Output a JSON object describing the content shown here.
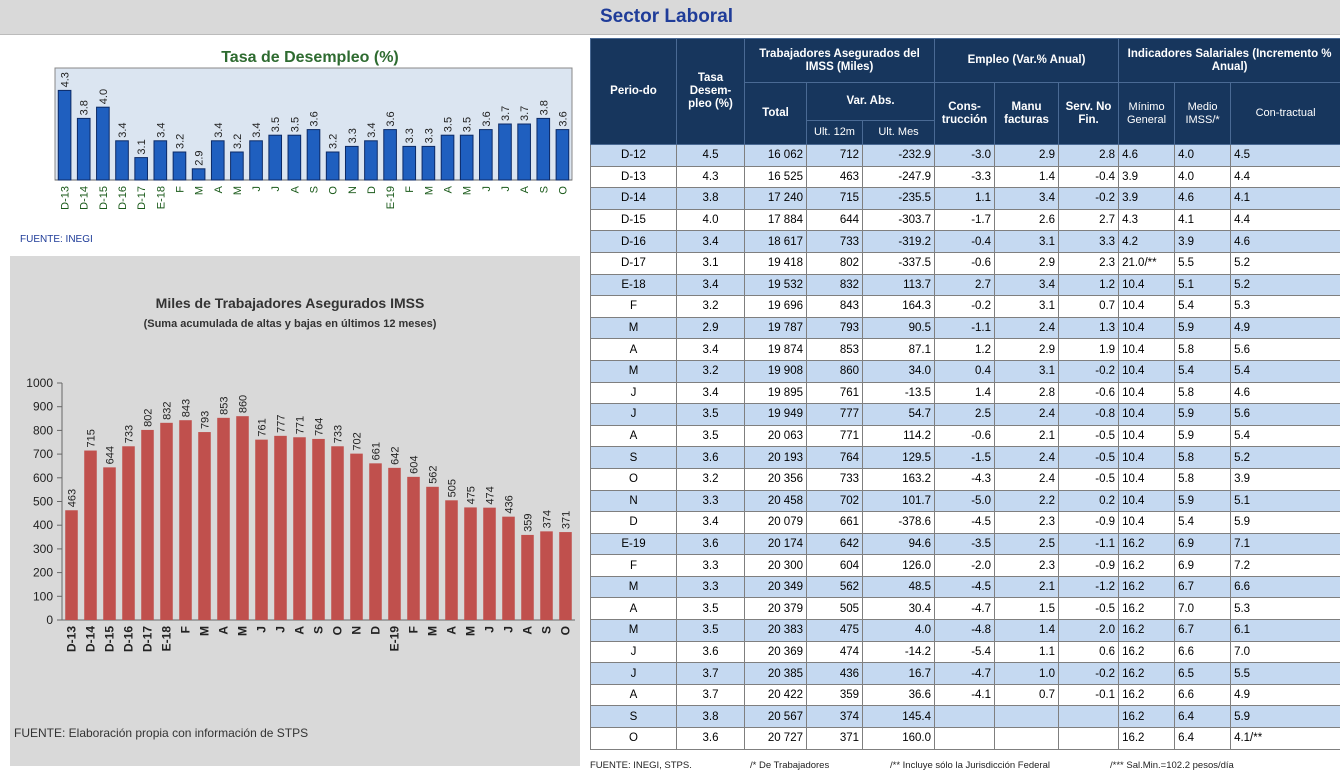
{
  "title": "Sector Laboral",
  "chart_data": [
    {
      "type": "bar",
      "title": "Tasa de Desempleo (%)",
      "source": "FUENTE: INEGI",
      "categories": [
        "D-13",
        "D-14",
        "D-15",
        "D-16",
        "D-17",
        "E-18",
        "F",
        "M",
        "A",
        "M",
        "J",
        "J",
        "A",
        "S",
        "O",
        "N",
        "D",
        "E-19",
        "F",
        "M",
        "A",
        "M",
        "J",
        "J",
        "A",
        "S",
        "O"
      ],
      "values": [
        4.3,
        3.8,
        4.0,
        3.4,
        3.1,
        3.4,
        3.2,
        2.9,
        3.4,
        3.2,
        3.4,
        3.5,
        3.5,
        3.6,
        3.2,
        3.3,
        3.4,
        3.6,
        3.3,
        3.3,
        3.5,
        3.5,
        3.6,
        3.7,
        3.7,
        3.8,
        3.6
      ],
      "value_labels": [
        "4.3",
        "3.8",
        "4.0",
        "3.4",
        "3.1",
        "3.4",
        "3.2",
        "2.9",
        "3.4",
        "3.2",
        "3.4",
        "3.5",
        "3.5",
        "3.6",
        "3.2",
        "3.3",
        "3.4",
        "3.6",
        "3.3",
        "3.3",
        "3.5",
        "3.5",
        "3.6",
        "3.7",
        "3.7",
        "3.8",
        "3.6"
      ],
      "color": "#1f5fbf",
      "ylim": [
        2.7,
        4.7
      ]
    },
    {
      "type": "bar",
      "title": "Miles de Trabajadores Asegurados IMSS",
      "subtitle": "(Suma acumulada de altas y bajas en últimos 12 meses)",
      "source": "FUENTE: Elaboración propia con información de STPS",
      "categories": [
        "D-13",
        "D-14",
        "D-15",
        "D-16",
        "D-17",
        "E-18",
        "F",
        "M",
        "A",
        "M",
        "J",
        "J",
        "A",
        "S",
        "O",
        "N",
        "D",
        "E-19",
        "F",
        "M",
        "A",
        "M",
        "J",
        "J",
        "A",
        "S",
        "O"
      ],
      "values": [
        463,
        715,
        644,
        733,
        802,
        832,
        843,
        793,
        853,
        860,
        761,
        777,
        771,
        764,
        733,
        702,
        661,
        642,
        604,
        562,
        505,
        475,
        474,
        436,
        359,
        374,
        371
      ],
      "color": "#c0504d",
      "ylim": [
        0,
        1000
      ],
      "yticks": [
        0,
        100,
        200,
        300,
        400,
        500,
        600,
        700,
        800,
        900,
        1000
      ]
    }
  ],
  "table": {
    "header": {
      "periodo": "Perio-do",
      "tasa": "Tasa Desem-pleo (%)",
      "trabajadores": "Trabajadores Asegurados del IMSS (Miles)",
      "total": "Total",
      "var_abs": "Var. Abs.",
      "ult_12m": "Ult. 12m",
      "ult_mes": "Ult. Mes",
      "empleo": "Empleo (Var.% Anual)",
      "construccion": "Cons-trucción",
      "manufacturas": "Manu facturas",
      "servicios": "Serv. No Fin.",
      "indicadores": "Indicadores Salariales (Incremento % Anual)",
      "minimo": "Mínimo General",
      "medio": "Medio IMSS/*",
      "contractual": "Con-tractual"
    },
    "rows": [
      [
        "D-12",
        "4.5",
        "16 062",
        "712",
        "-232.9",
        "-3.0",
        "2.9",
        "2.8",
        "4.6",
        "4.0",
        "4.5"
      ],
      [
        "D-13",
        "4.3",
        "16 525",
        "463",
        "-247.9",
        "-3.3",
        "1.4",
        "-0.4",
        "3.9",
        "4.0",
        "4.4"
      ],
      [
        "D-14",
        "3.8",
        "17 240",
        "715",
        "-235.5",
        "1.1",
        "3.4",
        "-0.2",
        "3.9",
        "4.6",
        "4.1"
      ],
      [
        "D-15",
        "4.0",
        "17 884",
        "644",
        "-303.7",
        "-1.7",
        "2.6",
        "2.7",
        "4.3",
        "4.1",
        "4.4"
      ],
      [
        "D-16",
        "3.4",
        "18 617",
        "733",
        "-319.2",
        "-0.4",
        "3.1",
        "3.3",
        "4.2",
        "3.9",
        "4.6"
      ],
      [
        "D-17",
        "3.1",
        "19 418",
        "802",
        "-337.5",
        "-0.6",
        "2.9",
        "2.3",
        "21.0/**",
        "5.5",
        "5.2"
      ],
      [
        "E-18",
        "3.4",
        "19 532",
        "832",
        "113.7",
        "2.7",
        "3.4",
        "1.2",
        "10.4",
        "5.1",
        "5.2"
      ],
      [
        "F",
        "3.2",
        "19 696",
        "843",
        "164.3",
        "-0.2",
        "3.1",
        "0.7",
        "10.4",
        "5.4",
        "5.3"
      ],
      [
        "M",
        "2.9",
        "19 787",
        "793",
        "90.5",
        "-1.1",
        "2.4",
        "1.3",
        "10.4",
        "5.9",
        "4.9"
      ],
      [
        "A",
        "3.4",
        "19 874",
        "853",
        "87.1",
        "1.2",
        "2.9",
        "1.9",
        "10.4",
        "5.8",
        "5.6"
      ],
      [
        "M",
        "3.2",
        "19 908",
        "860",
        "34.0",
        "0.4",
        "3.1",
        "-0.2",
        "10.4",
        "5.4",
        "5.4"
      ],
      [
        "J",
        "3.4",
        "19 895",
        "761",
        "-13.5",
        "1.4",
        "2.8",
        "-0.6",
        "10.4",
        "5.8",
        "4.6"
      ],
      [
        "J",
        "3.5",
        "19 949",
        "777",
        "54.7",
        "2.5",
        "2.4",
        "-0.8",
        "10.4",
        "5.9",
        "5.6"
      ],
      [
        "A",
        "3.5",
        "20 063",
        "771",
        "114.2",
        "-0.6",
        "2.1",
        "-0.5",
        "10.4",
        "5.9",
        "5.4"
      ],
      [
        "S",
        "3.6",
        "20 193",
        "764",
        "129.5",
        "-1.5",
        "2.4",
        "-0.5",
        "10.4",
        "5.8",
        "5.2"
      ],
      [
        "O",
        "3.2",
        "20 356",
        "733",
        "163.2",
        "-4.3",
        "2.4",
        "-0.5",
        "10.4",
        "5.8",
        "3.9"
      ],
      [
        "N",
        "3.3",
        "20 458",
        "702",
        "101.7",
        "-5.0",
        "2.2",
        "0.2",
        "10.4",
        "5.9",
        "5.1"
      ],
      [
        "D",
        "3.4",
        "20 079",
        "661",
        "-378.6",
        "-4.5",
        "2.3",
        "-0.9",
        "10.4",
        "5.4",
        "5.9"
      ],
      [
        "E-19",
        "3.6",
        "20 174",
        "642",
        "94.6",
        "-3.5",
        "2.5",
        "-1.1",
        "16.2",
        "6.9",
        "7.1"
      ],
      [
        "F",
        "3.3",
        "20 300",
        "604",
        "126.0",
        "-2.0",
        "2.3",
        "-0.9",
        "16.2",
        "6.9",
        "7.2"
      ],
      [
        "M",
        "3.3",
        "20 349",
        "562",
        "48.5",
        "-4.5",
        "2.1",
        "-1.2",
        "16.2",
        "6.7",
        "6.6"
      ],
      [
        "A",
        "3.5",
        "20 379",
        "505",
        "30.4",
        "-4.7",
        "1.5",
        "-0.5",
        "16.2",
        "7.0",
        "5.3"
      ],
      [
        "M",
        "3.5",
        "20 383",
        "475",
        "4.0",
        "-4.8",
        "1.4",
        "2.0",
        "16.2",
        "6.7",
        "6.1"
      ],
      [
        "J",
        "3.6",
        "20 369",
        "474",
        "-14.2",
        "-5.4",
        "1.1",
        "0.6",
        "16.2",
        "6.6",
        "7.0"
      ],
      [
        "J",
        "3.7",
        "20 385",
        "436",
        "16.7",
        "-4.7",
        "1.0",
        "-0.2",
        "16.2",
        "6.5",
        "5.5"
      ],
      [
        "A",
        "3.7",
        "20 422",
        "359",
        "36.6",
        "-4.1",
        "0.7",
        "-0.1",
        "16.2",
        "6.6",
        "4.9"
      ],
      [
        "S",
        "3.8",
        "20 567",
        "374",
        "145.4",
        null,
        null,
        null,
        "16.2",
        "6.4",
        "5.9"
      ],
      [
        "O",
        "3.6",
        "20 727",
        "371",
        "160.0",
        null,
        null,
        null,
        "16.2",
        "6.4",
        "4.1/**"
      ]
    ],
    "footnotes": [
      "FUENTE: INEGI, STPS.",
      "/* De Trabajadores",
      "/** Incluye sólo la Jurisdicción Federal",
      "/*** Sal.Min.=102.2 pesos/día"
    ]
  }
}
